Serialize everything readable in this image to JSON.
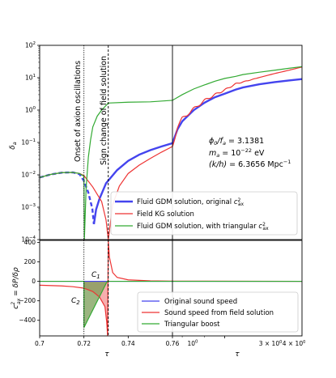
{
  "chart_data": [
    {
      "type": "line",
      "panel": "top",
      "ylabel": "δ_a",
      "y_scale": "log",
      "ylim": [
        0.0001,
        100
      ],
      "y_ticks": [
        "10^{-4}",
        "10^{-3}",
        "10^{-2}",
        "10^{-1}",
        "10^{0}",
        "10^{1}",
        "10^{2}"
      ],
      "vertical_lines": [
        {
          "x": 0.72,
          "style": "dotted",
          "label": "Onset of axion oscillations"
        },
        {
          "x": 0.731,
          "style": "dashed",
          "label": "Sign change of field solution"
        },
        {
          "x": 0.76,
          "style": "solid",
          "label": ""
        }
      ],
      "annotations": [
        "ϕ0/fa = 3.1381",
        "ma = 10^{-22} eV",
        "(k/h) = 6.3656 Mpc^{-1}"
      ],
      "legend": {
        "placement": "lower-right"
      },
      "series": [
        {
          "name": "Fluid GDM solution, original c²ax",
          "color": "#4444ee",
          "points": [
            [
              0.7,
              0.0083
            ],
            [
              0.705,
              0.0103
            ],
            [
              0.71,
              0.0117
            ],
            [
              0.715,
              0.0119
            ],
            [
              0.718,
              0.0105
            ],
            [
              0.72,
              0.0065
            ],
            [
              0.722,
              0.0028
            ],
            [
              0.7238,
              0.0009
            ],
            [
              0.7245,
              0.0003
            ],
            [
              0.7255,
              0.00085
            ],
            [
              0.727,
              0.0018
            ],
            [
              0.73,
              0.0055
            ],
            [
              0.735,
              0.014
            ],
            [
              0.74,
              0.027
            ],
            [
              0.745,
              0.042
            ],
            [
              0.75,
              0.058
            ],
            [
              0.755,
              0.075
            ],
            [
              0.76,
              0.095
            ],
            [
              0.78,
              0.25
            ],
            [
              0.8,
              0.45
            ],
            [
              0.85,
              1.0
            ],
            [
              0.9,
              1.7
            ],
            [
              0.95,
              2.5
            ],
            [
              1.0,
              3.2
            ],
            [
              1.06,
              4.3
            ],
            [
              1.1,
              5.0
            ],
            [
              1.2,
              6.3
            ],
            [
              1.3,
              7.3
            ],
            [
              1.4,
              8.2
            ],
            [
              1.5,
              9.1
            ]
          ]
        },
        {
          "name": "Field KG solution",
          "color": "#ee3333",
          "points": [
            [
              0.7,
              0.0083
            ],
            [
              0.705,
              0.0103
            ],
            [
              0.71,
              0.0117
            ],
            [
              0.715,
              0.0119
            ],
            [
              0.718,
              0.011
            ],
            [
              0.72,
              0.0095
            ],
            [
              0.724,
              0.0042
            ],
            [
              0.728,
              0.0015
            ],
            [
              0.73,
              0.0004
            ],
            [
              0.731,
              0.0001
            ],
            [
              0.733,
              0.0012
            ],
            [
              0.736,
              0.0045
            ],
            [
              0.74,
              0.011
            ],
            [
              0.745,
              0.02
            ],
            [
              0.75,
              0.032
            ],
            [
              0.755,
              0.05
            ],
            [
              0.76,
              0.075
            ],
            [
              0.78,
              0.3
            ],
            [
              0.8,
              0.55
            ],
            [
              0.85,
              1.1
            ],
            [
              0.9,
              2.0
            ],
            [
              0.95,
              3.0
            ],
            [
              1.0,
              4.2
            ],
            [
              1.06,
              6.5
            ],
            [
              1.1,
              7.4
            ],
            [
              1.2,
              10.2
            ],
            [
              1.3,
              13.5
            ],
            [
              1.4,
              17.0
            ],
            [
              1.5,
              21.5
            ]
          ]
        },
        {
          "name": "Fluid GDM solution, with triangular c²ax",
          "color": "#33aa33",
          "points": [
            [
              0.7,
              0.0083
            ],
            [
              0.705,
              0.0103
            ],
            [
              0.71,
              0.0117
            ],
            [
              0.715,
              0.0119
            ],
            [
              0.718,
              0.011
            ],
            [
              0.72,
              0.009
            ],
            [
              0.7202,
              0.0001
            ],
            [
              0.7205,
              0.0004
            ],
            [
              0.721,
              0.004
            ],
            [
              0.722,
              0.035
            ],
            [
              0.723,
              0.12
            ],
            [
              0.724,
              0.3
            ],
            [
              0.726,
              0.65
            ],
            [
              0.728,
              1.0
            ],
            [
              0.731,
              1.65
            ],
            [
              0.74,
              1.75
            ],
            [
              0.75,
              1.8
            ],
            [
              0.76,
              2.0
            ],
            [
              0.8,
              3.0
            ],
            [
              0.85,
              4.5
            ],
            [
              0.9,
              6.0
            ],
            [
              0.95,
              7.8
            ],
            [
              1.0,
              9.5
            ],
            [
              1.06,
              11.0
            ],
            [
              1.1,
              12.5
            ],
            [
              1.2,
              14.8
            ],
            [
              1.3,
              17.0
            ],
            [
              1.4,
              19.5
            ],
            [
              1.5,
              22.0
            ]
          ]
        }
      ]
    },
    {
      "type": "line",
      "panel": "bottom",
      "xlabel": "τ",
      "ylabel": "c²ax = δP/δρ",
      "ylim": [
        -560,
        420
      ],
      "y_ticks": [
        "400",
        "200",
        "0",
        "−200",
        "−400"
      ],
      "x_ticks_left": [
        "0.7",
        "0.72",
        "0.74",
        "0.76"
      ],
      "x_ticks_right": [
        "10^0",
        "3 × 10^0",
        "4 × 10^0"
      ],
      "legend": {
        "placement": "lower-right"
      },
      "region_labels": [
        "C1",
        "C2"
      ],
      "series": [
        {
          "name": "Original sound speed",
          "color": "#4444ee",
          "points": [
            [
              0.7,
              0
            ],
            [
              0.76,
              0
            ],
            [
              1.5,
              0
            ]
          ]
        },
        {
          "name": "Sound speed from field solution",
          "color": "#ee3333",
          "points": [
            [
              0.7,
              -40
            ],
            [
              0.71,
              -47
            ],
            [
              0.715,
              -55
            ],
            [
              0.72,
              -70
            ],
            [
              0.724,
              -105
            ],
            [
              0.727,
              -160
            ],
            [
              0.7295,
              -260
            ],
            [
              0.7303,
              -420
            ],
            [
              0.7307,
              -560
            ],
            [
              0.731,
              420
            ],
            [
              0.7315,
              250
            ],
            [
              0.733,
              90
            ],
            [
              0.735,
              40
            ],
            [
              0.74,
              15
            ],
            [
              0.75,
              5
            ],
            [
              0.76,
              2
            ],
            [
              1.5,
              0
            ]
          ]
        },
        {
          "name": "Triangular boost",
          "color": "#33aa33",
          "points": [
            [
              0.7,
              0
            ],
            [
              0.72,
              0
            ],
            [
              0.72,
              -475
            ],
            [
              0.7305,
              0
            ],
            [
              1.5,
              0
            ]
          ]
        }
      ]
    }
  ]
}
